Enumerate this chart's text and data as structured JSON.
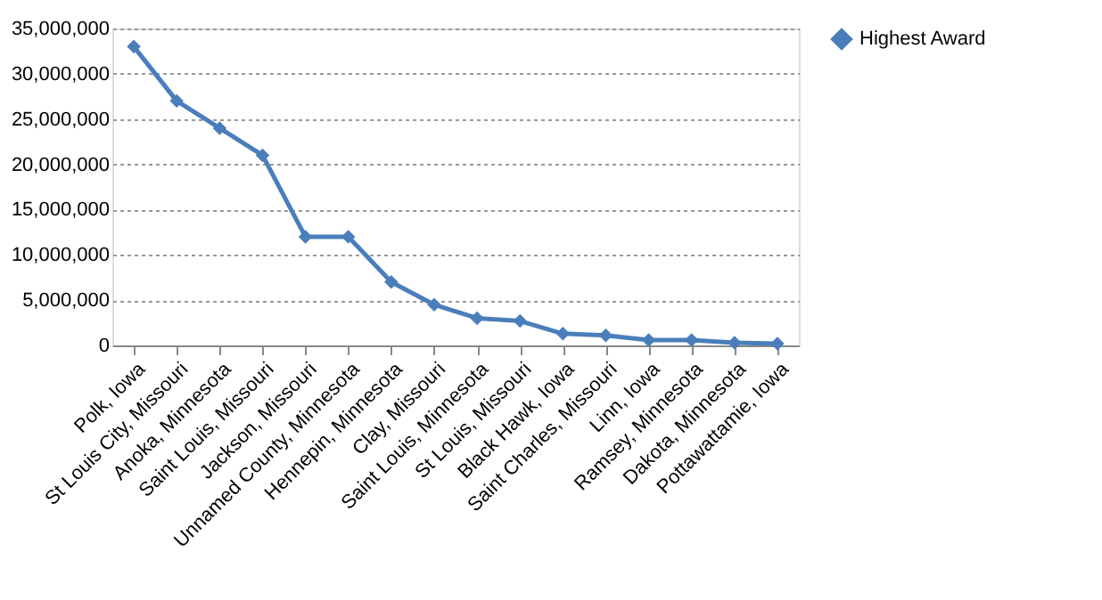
{
  "chart_data": {
    "type": "line",
    "categories": [
      "Polk, Iowa",
      "St Louis City, Missouri",
      "Anoka, Minnesota",
      "Saint Louis, Missouri",
      "Jackson, Missouri",
      "Unnamed County, Minnesota",
      "Hennepin, Minnesota",
      "Clay, Missouri",
      "Saint Louis, Minnesota",
      "St Louis, Missouri",
      "Black Hawk, Iowa",
      "Saint Charles, Missouri",
      "Linn, Iowa",
      "Ramsey, Minnesota",
      "Dakota, Minnesota",
      "Pottawattamie, Iowa"
    ],
    "series": [
      {
        "name": "Highest Award",
        "color": "#4a7ebb",
        "values": [
          33000000,
          27000000,
          24000000,
          21000000,
          12000000,
          12000000,
          7000000,
          4500000,
          3000000,
          2700000,
          1300000,
          1100000,
          600000,
          600000,
          300000,
          200000
        ]
      }
    ],
    "ylim": [
      0,
      35000000
    ],
    "yticks": [
      0,
      {
        "value": 5000000,
        "label": "5,000,000"
      },
      {
        "value": 10000000,
        "label": "10,000,000"
      },
      {
        "value": 15000000,
        "label": "15,000,000"
      },
      {
        "value": 20000000,
        "label": "20,000,000"
      },
      {
        "value": 25000000,
        "label": "25,000,000"
      },
      {
        "value": 30000000,
        "label": "30,000,000"
      },
      {
        "value": 35000000,
        "label": "35,000,000"
      }
    ],
    "grid": "y",
    "legend": "right",
    "marker": "diamond",
    "line_style": "solid"
  }
}
